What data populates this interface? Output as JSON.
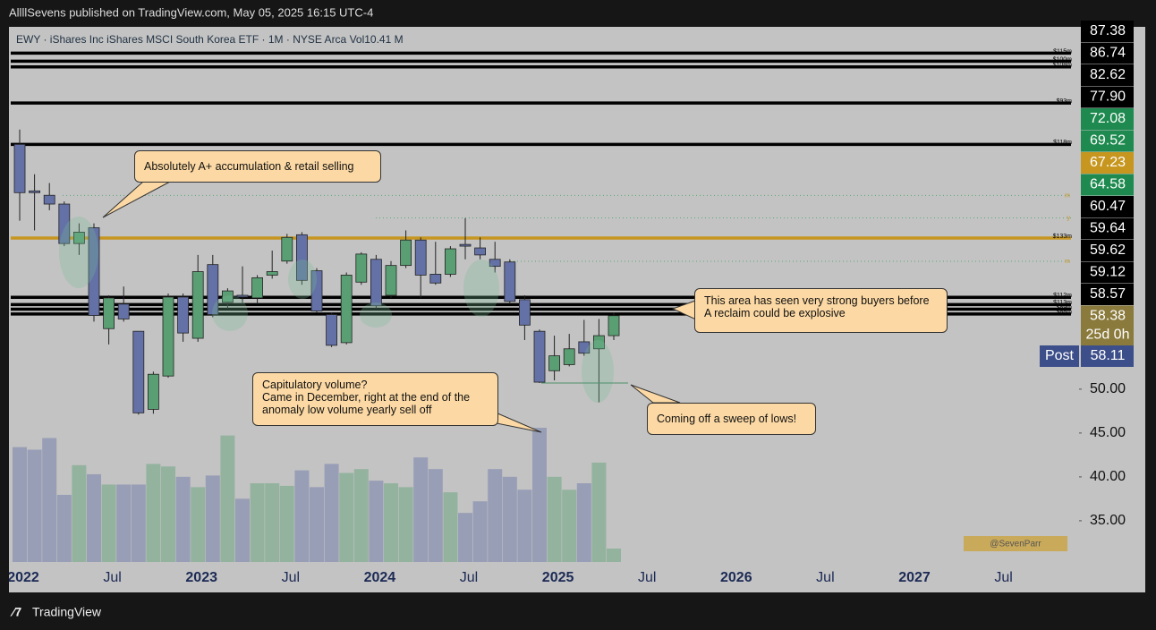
{
  "chart_data": {
    "type": "candlestick",
    "header": "AllllSevens published on TradingView.com, May 05, 2025 16:15 UTC-4",
    "legend": "EWY · iShares Inc iShares MSCI South Korea ETF · 1M · NYSE Arca  Vol10.41 M",
    "x_axis": [
      "2022",
      "Jul",
      "2023",
      "Jul",
      "2024",
      "Jul",
      "2025",
      "Jul",
      "2026",
      "Jul",
      "2027",
      "Jul"
    ],
    "ylim": [
      30.3,
      91.3
    ],
    "yticks": [
      {
        "value": 50,
        "label": "50.00"
      },
      {
        "value": 45,
        "label": "45.00"
      },
      {
        "value": 40,
        "label": "40.00"
      },
      {
        "value": 35,
        "label": "35.00"
      }
    ],
    "ohlc": [
      [
        77.9,
        79.6,
        69.2,
        72.4
      ],
      [
        72.6,
        74.5,
        68.1,
        72.4
      ],
      [
        72.1,
        73.5,
        70.4,
        71.1
      ],
      [
        71.1,
        71.4,
        66.3,
        66.6
      ],
      [
        66.6,
        68.9,
        65.3,
        67.9
      ],
      [
        68.4,
        68.9,
        57.7,
        58.4
      ],
      [
        56.9,
        60.7,
        55.1,
        60.4
      ],
      [
        59.7,
        61.7,
        57.7,
        58.0
      ],
      [
        56.6,
        56.6,
        47.1,
        47.3
      ],
      [
        47.7,
        52.0,
        47.2,
        51.7
      ],
      [
        51.5,
        60.9,
        51.3,
        60.5
      ],
      [
        60.5,
        60.9,
        55.4,
        56.4
      ],
      [
        55.8,
        65.3,
        55.4,
        63.4
      ],
      [
        64.2,
        65.3,
        58.2,
        58.5
      ],
      [
        59.9,
        61.5,
        59.2,
        61.2
      ],
      [
        60.7,
        64.0,
        59.7,
        60.5
      ],
      [
        60.4,
        63.0,
        59.7,
        62.7
      ],
      [
        63.0,
        65.8,
        62.6,
        63.4
      ],
      [
        64.6,
        67.7,
        64.3,
        67.3
      ],
      [
        67.6,
        67.9,
        61.9,
        62.4
      ],
      [
        63.5,
        63.8,
        58.7,
        58.9
      ],
      [
        58.5,
        58.7,
        54.8,
        55.0
      ],
      [
        55.3,
        63.3,
        55.1,
        63.0
      ],
      [
        62.2,
        65.6,
        61.9,
        65.4
      ],
      [
        64.8,
        65.3,
        59.2,
        59.5
      ],
      [
        60.7,
        64.6,
        60.4,
        64.1
      ],
      [
        64.1,
        68.1,
        63.8,
        67.0
      ],
      [
        67.0,
        67.3,
        60.4,
        63.0
      ],
      [
        63.1,
        66.8,
        61.9,
        62.1
      ],
      [
        63.1,
        66.3,
        62.8,
        66.0
      ],
      [
        66.5,
        69.5,
        64.8,
        66.3
      ],
      [
        66.1,
        67.3,
        64.8,
        65.3
      ],
      [
        64.8,
        66.8,
        63.3,
        64.0
      ],
      [
        64.5,
        64.8,
        59.7,
        60.0
      ],
      [
        60.2,
        60.7,
        55.6,
        57.3
      ],
      [
        56.6,
        56.8,
        50.7,
        50.8
      ],
      [
        52.1,
        56.1,
        51.0,
        53.8
      ],
      [
        52.8,
        56.3,
        52.6,
        54.6
      ],
      [
        55.4,
        57.9,
        53.8,
        54.1
      ],
      [
        54.6,
        58.0,
        48.5,
        56.1
      ],
      [
        56.1,
        58.7,
        55.6,
        58.38
      ]
    ],
    "volume": [
      89,
      87,
      96,
      52,
      75,
      68,
      60,
      60,
      60,
      76,
      74,
      66,
      58,
      67,
      98,
      49,
      61,
      61,
      59,
      71,
      58,
      76,
      69,
      72,
      63,
      61,
      58,
      81,
      72,
      54,
      38,
      47,
      72,
      66,
      56,
      104,
      66,
      56,
      61,
      77,
      10.41
    ],
    "up_color": "#5a9f73",
    "down_color": "#6471a6",
    "levels": [
      {
        "name": "$115m",
        "value": 88.3,
        "color": "#000000"
      },
      {
        "name": "$100m",
        "value": 87.38,
        "color": "#000000"
      },
      {
        "name": "$108m",
        "value": 86.74,
        "color": "#000000"
      },
      {
        "name": "$93m",
        "value": 82.62,
        "color": "#000000"
      },
      {
        "name": "$118m",
        "value": 77.9,
        "color": "#000000"
      },
      {
        "name": "$133m",
        "value": 67.23,
        "color": "#c7961f"
      },
      {
        "name": "$112m",
        "value": 60.47,
        "color": "#000000"
      },
      {
        "name": "$113m",
        "value": 59.64,
        "color": "#000000"
      },
      {
        "name": "$89m",
        "value": 59.12,
        "color": "#000000"
      },
      {
        "name": "$88m",
        "value": 58.57,
        "color": "#000000"
      }
    ],
    "dotted": [
      {
        "name": "m",
        "value": 72.08
      },
      {
        "name": "y",
        "value": 69.52
      },
      {
        "name": "m",
        "value": 64.58
      }
    ],
    "price_labels": [
      {
        "value": 87.38,
        "label": "87.38",
        "color": "#000000"
      },
      {
        "value": 86.74,
        "label": "86.74",
        "color": "#000000"
      },
      {
        "value": 82.62,
        "label": "82.62",
        "color": "#000000"
      },
      {
        "value": 77.9,
        "label": "77.90",
        "color": "#000000"
      },
      {
        "value": 72.08,
        "label": "72.08",
        "color": "#1e8a4f"
      },
      {
        "value": 69.52,
        "label": "69.52",
        "color": "#1e8a4f"
      },
      {
        "value": 67.23,
        "label": "67.23",
        "color": "#c7961f"
      },
      {
        "value": 64.58,
        "label": "64.58",
        "color": "#1e8a4f"
      },
      {
        "value": 60.47,
        "label": "60.47",
        "color": "#000000"
      },
      {
        "value": 59.64,
        "label": "59.64",
        "color": "#000000"
      },
      {
        "value": 59.62,
        "label": "59.62",
        "color": "#000000"
      },
      {
        "value": 59.12,
        "label": "59.12",
        "color": "#000000"
      },
      {
        "value": 58.57,
        "label": "58.57",
        "color": "#000000"
      },
      {
        "value": 58.38,
        "label": "58.38",
        "color": "#8a7a3c"
      },
      {
        "value": 58.11,
        "label": "58.11",
        "color": "#3d4f8a"
      }
    ],
    "countdown": "25d 0h",
    "post": "Post",
    "annotations": [
      [
        "Absolutely A+ accumulation & retail selling"
      ],
      [
        "This area has seen very strong buyers before",
        "A reclaim could be explosive"
      ],
      [
        "Capitulatory volume?",
        "Came in December, right at the end of the",
        "anomaly low volume yearly sell off"
      ],
      [
        "Coming off a sweep of lows!"
      ]
    ],
    "watermark": "@SevenParr",
    "footer": "TradingView"
  }
}
